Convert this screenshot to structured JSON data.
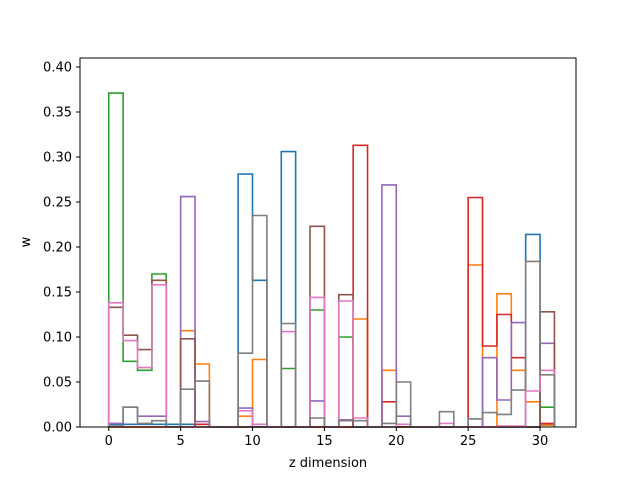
{
  "chart_data": {
    "type": "step-histogram",
    "xlabel": "z dimension",
    "ylabel": "w",
    "xlim": [
      -2,
      32.5
    ],
    "ylim": [
      0,
      0.41
    ],
    "x_ticks": [
      0,
      5,
      10,
      15,
      20,
      25,
      30
    ],
    "y_ticks": [
      0.0,
      0.05,
      0.1,
      0.15,
      0.2,
      0.25,
      0.3,
      0.35,
      0.4
    ],
    "bin_edges": [
      0,
      1,
      2,
      3,
      4,
      5,
      6,
      7,
      8,
      9,
      10,
      11,
      12,
      13,
      14,
      15,
      16,
      17,
      18,
      19,
      20,
      21,
      22,
      23,
      24,
      25,
      26,
      27,
      28,
      29,
      30,
      31
    ],
    "series": [
      {
        "color": "#1f77b4",
        "values": [
          0.003,
          0.003,
          0.003,
          0.003,
          0.003,
          0.003,
          0.003,
          0,
          0,
          0.281,
          0.163,
          0,
          0.306,
          0,
          0,
          0,
          0,
          0,
          0,
          0,
          0,
          0,
          0,
          0,
          0,
          0,
          0,
          0,
          0,
          0.214,
          0.003
        ]
      },
      {
        "color": "#ff7f0e",
        "values": [
          0,
          0,
          0,
          0,
          0,
          0.107,
          0.07,
          0,
          0,
          0.012,
          0.075,
          0,
          0,
          0,
          0,
          0,
          0,
          0.12,
          0,
          0.063,
          0,
          0,
          0,
          0,
          0,
          0.18,
          0,
          0.148,
          0.063,
          0.028,
          0.002
        ]
      },
      {
        "color": "#2ca02c",
        "values": [
          0.371,
          0.073,
          0.063,
          0.17,
          0,
          0,
          0,
          0,
          0,
          0,
          0,
          0,
          0.065,
          0,
          0.13,
          0,
          0.1,
          0,
          0,
          0,
          0,
          0,
          0,
          0,
          0,
          0,
          0,
          0,
          0,
          0,
          0.022
        ]
      },
      {
        "color": "#d62728",
        "values": [
          0,
          0,
          0,
          0,
          0,
          0,
          0.003,
          0,
          0,
          0,
          0,
          0,
          0,
          0,
          0,
          0,
          0,
          0.313,
          0,
          0.028,
          0,
          0,
          0,
          0,
          0,
          0.255,
          0.09,
          0.125,
          0.077,
          0,
          0.004
        ]
      },
      {
        "color": "#9467bd",
        "values": [
          0.004,
          0.022,
          0.012,
          0.012,
          0,
          0.256,
          0.006,
          0,
          0,
          0.021,
          0,
          0,
          0,
          0,
          0.029,
          0,
          0.008,
          0,
          0,
          0.269,
          0.012,
          0,
          0,
          0,
          0,
          0,
          0.077,
          0.03,
          0.116,
          0,
          0.093
        ]
      },
      {
        "color": "#8c564b",
        "values": [
          0.133,
          0.102,
          0.086,
          0.163,
          0,
          0.098,
          0,
          0,
          0,
          0,
          0,
          0,
          0,
          0,
          0.223,
          0,
          0.147,
          0,
          0,
          0,
          0,
          0,
          0,
          0,
          0,
          0,
          0,
          0,
          0,
          0,
          0.128
        ]
      },
      {
        "color": "#e377c2",
        "values": [
          0.138,
          0.096,
          0.066,
          0.158,
          0,
          0,
          0,
          0,
          0,
          0.018,
          0.003,
          0,
          0.106,
          0,
          0.144,
          0,
          0.14,
          0.01,
          0,
          0,
          0.003,
          0,
          0,
          0.004,
          0,
          0,
          0,
          0.001,
          0.001,
          0.04,
          0.063
        ]
      },
      {
        "color": "#7f7f7f",
        "values": [
          0.001,
          0.022,
          0.004,
          0.007,
          0,
          0.042,
          0.051,
          0,
          0,
          0.082,
          0.235,
          0,
          0.115,
          0,
          0.01,
          0,
          0.007,
          0.007,
          0,
          0.004,
          0.05,
          0,
          0,
          0.017,
          0,
          0.009,
          0.016,
          0.014,
          0.041,
          0.184,
          0.058
        ]
      }
    ]
  }
}
